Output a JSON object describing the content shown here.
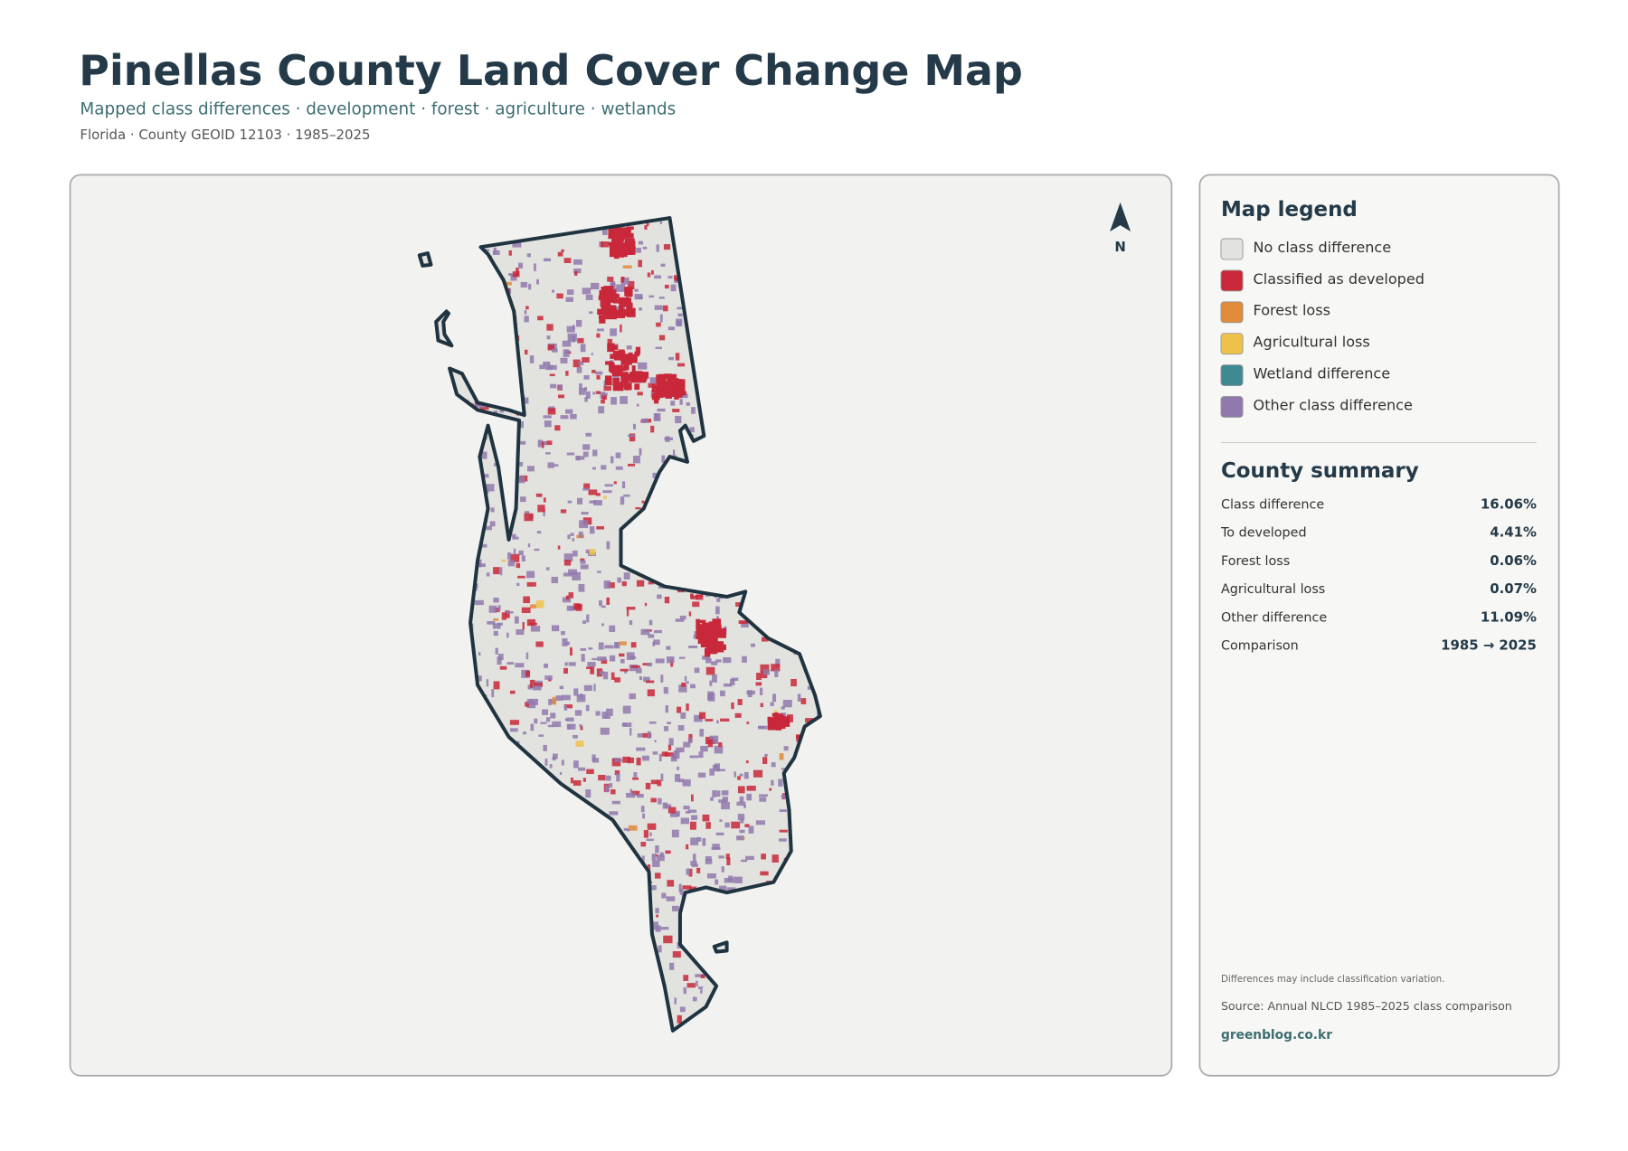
{
  "header": {
    "title": "Pinellas County Land Cover Change Map",
    "subtitle": "Mapped class differences · development · forest · agriculture · wetlands",
    "meta": "Florida · County GEOID 12103 · 1985–2025"
  },
  "map": {
    "north_label": "N"
  },
  "legend": {
    "title": "Map legend",
    "items": [
      {
        "label": "No class difference",
        "color": "#e2e2df"
      },
      {
        "label": "Classified as developed",
        "color": "#c8283a"
      },
      {
        "label": "Forest loss",
        "color": "#e08a3a"
      },
      {
        "label": "Agricultural loss",
        "color": "#eec24a"
      },
      {
        "label": "Wetland difference",
        "color": "#3f8a92"
      },
      {
        "label": "Other class difference",
        "color": "#9179ad"
      }
    ]
  },
  "summary": {
    "title": "County summary",
    "rows": [
      {
        "label": "Class difference",
        "value": "16.06%"
      },
      {
        "label": "To developed",
        "value": "4.41%"
      },
      {
        "label": "Forest loss",
        "value": "0.06%"
      },
      {
        "label": "Agricultural loss",
        "value": "0.07%"
      },
      {
        "label": "Other difference",
        "value": "11.09%"
      },
      {
        "label": "Comparison",
        "value": "1985 → 2025"
      }
    ]
  },
  "footer": {
    "note": "Differences may include classification variation.",
    "source": "Source: Annual NLCD 1985–2025 class comparison",
    "site": "greenblog.co.kr"
  }
}
